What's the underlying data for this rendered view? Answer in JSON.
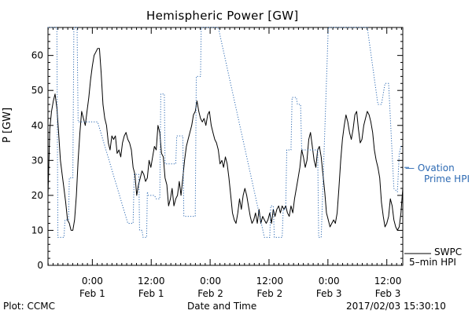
{
  "chart_data": {
    "type": "line",
    "title": "Hemispheric Power [GW]",
    "ylabel": "P [GW]",
    "xlabel": "Date and Time",
    "ylim": [
      0,
      68
    ],
    "xlim": [
      0,
      1
    ],
    "grid": false,
    "y_ticks": [
      0,
      10,
      20,
      30,
      40,
      50,
      60
    ],
    "x_ticks": [
      {
        "x": 0.125,
        "time": "0:00",
        "date": "Feb 1"
      },
      {
        "x": 0.291,
        "time": "12:00",
        "date": "Feb 1"
      },
      {
        "x": 0.458,
        "time": "0:00",
        "date": "Feb 2"
      },
      {
        "x": 0.625,
        "time": "12:00",
        "date": "Feb 2"
      },
      {
        "x": 0.792,
        "time": "0:00",
        "date": "Feb 3"
      },
      {
        "x": 0.958,
        "time": "12:00",
        "date": "Feb 3"
      }
    ],
    "series": [
      {
        "name": "SWPC 5-min HPI",
        "color": "#000000",
        "style": "solid",
        "x": [
          0.0,
          0.005,
          0.01,
          0.015,
          0.02,
          0.025,
          0.03,
          0.035,
          0.04,
          0.045,
          0.05,
          0.055,
          0.06,
          0.065,
          0.07,
          0.075,
          0.08,
          0.085,
          0.09,
          0.095,
          0.1,
          0.105,
          0.11,
          0.115,
          0.12,
          0.125,
          0.13,
          0.135,
          0.14,
          0.145,
          0.15,
          0.155,
          0.16,
          0.165,
          0.17,
          0.175,
          0.18,
          0.185,
          0.19,
          0.195,
          0.2,
          0.205,
          0.21,
          0.215,
          0.22,
          0.225,
          0.23,
          0.235,
          0.24,
          0.245,
          0.25,
          0.255,
          0.26,
          0.265,
          0.27,
          0.275,
          0.28,
          0.285,
          0.29,
          0.295,
          0.3,
          0.305,
          0.31,
          0.315,
          0.32,
          0.325,
          0.33,
          0.335,
          0.34,
          0.345,
          0.35,
          0.355,
          0.36,
          0.365,
          0.37,
          0.375,
          0.38,
          0.385,
          0.39,
          0.395,
          0.4,
          0.405,
          0.41,
          0.415,
          0.42,
          0.425,
          0.43,
          0.435,
          0.44,
          0.445,
          0.45,
          0.455,
          0.46,
          0.465,
          0.47,
          0.475,
          0.48,
          0.485,
          0.49,
          0.495,
          0.5,
          0.505,
          0.51,
          0.515,
          0.52,
          0.525,
          0.53,
          0.535,
          0.54,
          0.545,
          0.55,
          0.555,
          0.56,
          0.565,
          0.57,
          0.575,
          0.58,
          0.585,
          0.59,
          0.595,
          0.6,
          0.605,
          0.61,
          0.615,
          0.62,
          0.625,
          0.63,
          0.635,
          0.64,
          0.645,
          0.65,
          0.655,
          0.66,
          0.665,
          0.67,
          0.675,
          0.68,
          0.685,
          0.69,
          0.695,
          0.7,
          0.705,
          0.71,
          0.715,
          0.72,
          0.725,
          0.73,
          0.735,
          0.74,
          0.745,
          0.75,
          0.755,
          0.76,
          0.765,
          0.77,
          0.775,
          0.78,
          0.785,
          0.79,
          0.795,
          0.8,
          0.805,
          0.81,
          0.815,
          0.82,
          0.825,
          0.83,
          0.835,
          0.84,
          0.845,
          0.85,
          0.855,
          0.86,
          0.865,
          0.87,
          0.875,
          0.88,
          0.885,
          0.89,
          0.895,
          0.9,
          0.905,
          0.91,
          0.915,
          0.92,
          0.925,
          0.93,
          0.935,
          0.94,
          0.945,
          0.95,
          0.955,
          0.96,
          0.965,
          0.97,
          0.975,
          0.98,
          0.985,
          0.99,
          0.995,
          1.0
        ],
        "values": [
          20,
          39,
          44,
          47,
          49,
          45,
          38,
          30,
          26,
          22,
          18,
          13,
          12,
          10,
          10,
          13,
          20,
          30,
          38,
          44,
          42,
          40,
          44,
          48,
          53,
          57,
          60,
          61,
          62,
          62,
          55,
          46,
          42,
          40,
          35,
          33,
          37,
          36,
          37,
          32,
          33,
          31,
          35,
          37,
          38,
          36,
          35,
          33,
          28,
          26,
          20,
          23,
          25,
          27,
          26,
          24,
          25,
          30,
          28,
          31,
          34,
          33,
          40,
          38,
          32,
          31,
          25,
          23,
          17,
          19,
          22,
          17,
          19,
          20,
          24,
          20,
          25,
          30,
          34,
          36,
          38,
          40,
          43,
          44,
          47,
          44,
          42,
          41,
          42,
          40,
          43,
          44,
          40,
          38,
          36,
          35,
          33,
          29,
          30,
          28,
          31,
          29,
          25,
          20,
          15,
          13,
          12,
          15,
          19,
          16,
          20,
          22,
          20,
          17,
          14,
          12,
          13,
          15,
          12,
          16,
          12,
          14,
          13,
          12,
          13,
          15,
          12,
          16,
          14,
          16,
          17,
          15,
          17,
          16,
          17,
          15,
          14,
          17,
          15,
          19,
          22,
          25,
          28,
          33,
          31,
          28,
          30,
          36,
          38,
          34,
          30,
          28,
          33,
          34,
          31,
          26,
          21,
          15,
          13,
          11,
          12,
          13,
          12,
          15,
          22,
          30,
          36,
          40,
          43,
          41,
          38,
          36,
          39,
          43,
          44,
          39,
          35,
          36,
          40,
          42,
          44,
          43,
          41,
          38,
          33,
          30,
          28,
          25,
          18,
          14,
          11,
          12,
          14,
          19,
          17,
          13,
          11,
          10,
          11,
          15,
          22
        ]
      },
      {
        "name": "Ovation Prime HPI",
        "color": "#2d6ab3",
        "style": "dotted",
        "points": [
          [
            0.0,
            68
          ],
          [
            0.025,
            68
          ],
          [
            0.028,
            8
          ],
          [
            0.045,
            8
          ],
          [
            0.048,
            13
          ],
          [
            0.058,
            13
          ],
          [
            0.06,
            25
          ],
          [
            0.07,
            25
          ],
          [
            0.073,
            68
          ],
          [
            0.082,
            68
          ],
          [
            0.085,
            41
          ],
          [
            0.14,
            41
          ],
          [
            0.225,
            12
          ],
          [
            0.24,
            12
          ],
          [
            0.243,
            26
          ],
          [
            0.256,
            26
          ],
          [
            0.258,
            10
          ],
          [
            0.265,
            10
          ],
          [
            0.268,
            8
          ],
          [
            0.278,
            8
          ],
          [
            0.28,
            21
          ],
          [
            0.283,
            20
          ],
          [
            0.3,
            20
          ],
          [
            0.305,
            19
          ],
          [
            0.315,
            19
          ],
          [
            0.318,
            49
          ],
          [
            0.328,
            49
          ],
          [
            0.33,
            29
          ],
          [
            0.36,
            29
          ],
          [
            0.363,
            37
          ],
          [
            0.38,
            37
          ],
          [
            0.383,
            14
          ],
          [
            0.39,
            14
          ],
          [
            0.393,
            14
          ],
          [
            0.415,
            14
          ],
          [
            0.418,
            54
          ],
          [
            0.43,
            54
          ],
          [
            0.432,
            68
          ],
          [
            0.48,
            68
          ],
          [
            0.61,
            8
          ],
          [
            0.625,
            8
          ],
          [
            0.628,
            17
          ],
          [
            0.635,
            17
          ],
          [
            0.638,
            8
          ],
          [
            0.66,
            8
          ],
          [
            0.663,
            16
          ],
          [
            0.67,
            16
          ],
          [
            0.673,
            33
          ],
          [
            0.685,
            33
          ],
          [
            0.688,
            48
          ],
          [
            0.7,
            48
          ],
          [
            0.703,
            46
          ],
          [
            0.712,
            46
          ],
          [
            0.715,
            33
          ],
          [
            0.76,
            33
          ],
          [
            0.763,
            8
          ],
          [
            0.77,
            8
          ],
          [
            0.79,
            68
          ],
          [
            0.9,
            68
          ],
          [
            0.93,
            46
          ],
          [
            0.94,
            46
          ],
          [
            0.95,
            52
          ],
          [
            0.96,
            52
          ],
          [
            0.975,
            22
          ],
          [
            0.985,
            21
          ],
          [
            0.99,
            32
          ],
          [
            0.995,
            34
          ],
          [
            1.0,
            34
          ]
        ]
      }
    ]
  },
  "labels": {
    "title": "Hemispheric Power [GW]",
    "ylabel": "P [GW]",
    "xlabel": "Date and Time",
    "plot_credit": "Plot: CCMC",
    "timestamp": "2017/02/03 15:30:10",
    "legend_ovation_1": "— Ovation",
    "legend_ovation_2": "Prime HPI",
    "legend_swpc_1": "SWPC",
    "legend_swpc_2": "5–min HPI"
  }
}
